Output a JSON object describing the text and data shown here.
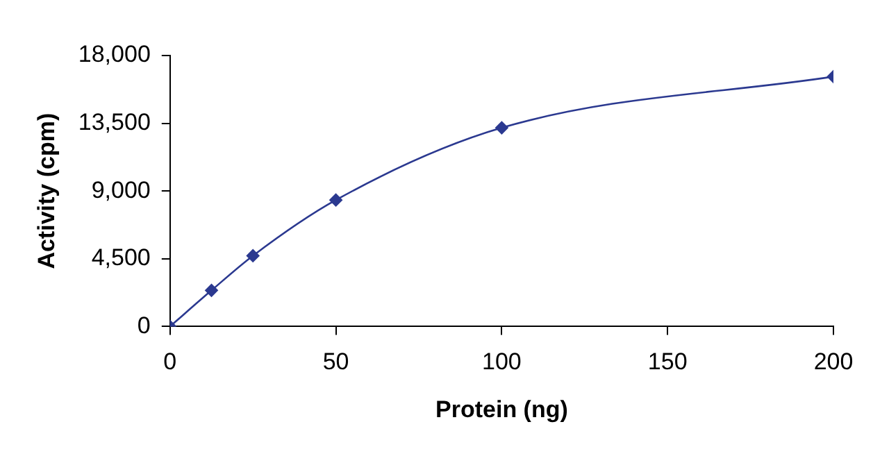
{
  "chart_data": {
    "type": "line",
    "xlabel": "Protein (ng)",
    "ylabel": "Activity (cpm)",
    "x": [
      0,
      12.5,
      25,
      50,
      100,
      200
    ],
    "series": [
      {
        "color": "#2b3990",
        "values": [
          0,
          2400,
          4700,
          8400,
          13200,
          16600
        ]
      }
    ],
    "xlim": [
      0,
      200
    ],
    "xticks": [
      0,
      50,
      100,
      150,
      200
    ],
    "ylim": [
      0,
      18000
    ],
    "yticks": [
      {
        "value": 0,
        "label": "0"
      },
      {
        "value": 4500,
        "label": "4,500"
      },
      {
        "value": 9000,
        "label": "9,000"
      },
      {
        "value": 13500,
        "label": "13,500"
      },
      {
        "value": 18000,
        "label": "18,000"
      }
    ],
    "grid": false,
    "legend": false,
    "marker": "diamond",
    "line_style": "solid"
  }
}
